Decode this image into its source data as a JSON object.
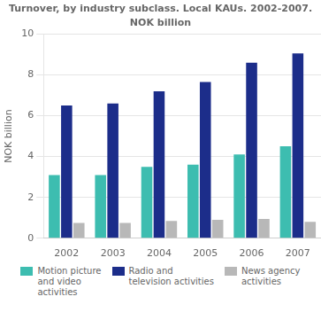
{
  "chart_data": {
    "type": "bar",
    "title": "Turnover, by industry subclass. Local KAUs. 2002-2007.",
    "subtitle": "NOK billion",
    "y_label": "NOK billion",
    "categories": [
      "2002",
      "2003",
      "2004",
      "2005",
      "2006",
      "2007"
    ],
    "series": [
      {
        "name": "Motion picture\nand video\nactivities",
        "color": "#3dbdb0",
        "values": [
          3.1,
          3.1,
          3.5,
          3.6,
          4.1,
          4.5
        ]
      },
      {
        "name": "Radio and\ntelevision activities",
        "color": "#1c2d8a",
        "values": [
          6.5,
          6.6,
          7.2,
          7.65,
          8.6,
          9.05
        ]
      },
      {
        "name": "News agency\nactivities",
        "color": "#b8b8b8",
        "values": [
          0.75,
          0.75,
          0.85,
          0.9,
          0.95,
          0.8
        ]
      }
    ],
    "ylim": [
      0,
      10
    ],
    "yticks": [
      0,
      2,
      4,
      6,
      8,
      10
    ],
    "grid": true,
    "legend": "bottom"
  }
}
